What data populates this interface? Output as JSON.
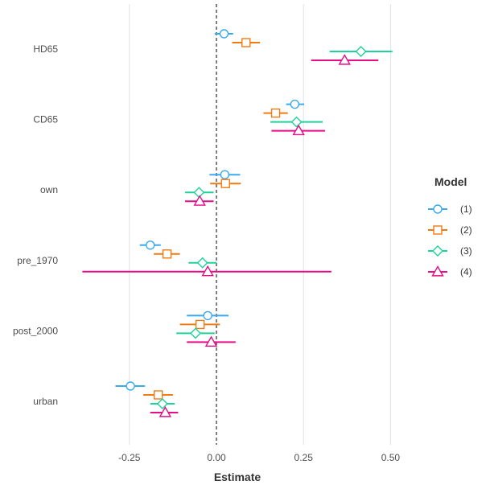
{
  "chart_data": {
    "type": "forest",
    "title": "",
    "xlabel": "Estimate",
    "ylabel": "",
    "xlim": [
      -0.36,
      0.76
    ],
    "xticks": [
      -0.25,
      0.0,
      0.25,
      0.5
    ],
    "xtick_labels": [
      "-0.25",
      "0.00",
      "0.25",
      "0.50"
    ],
    "reference_line": 0,
    "reference_line_style": "dashed",
    "grid": "vertical major",
    "legend_title": "Model",
    "legend_position": "right",
    "terms": [
      "HD65",
      "CD65",
      "own",
      "pre_1970",
      "post_2000",
      "urban"
    ],
    "series": [
      {
        "name": "(1)",
        "color": "#3aaaf0",
        "shape": "circle",
        "estimates": [
          0.022,
          0.225,
          0.024,
          -0.19,
          -0.025,
          -0.247
        ],
        "ci_low": [
          -0.005,
          0.2,
          -0.02,
          -0.22,
          -0.085,
          -0.29
        ],
        "ci_high": [
          0.048,
          0.252,
          0.068,
          -0.16,
          0.035,
          -0.205
        ]
      },
      {
        "name": "(2)",
        "color": "#f07b13",
        "shape": "square",
        "estimates": [
          0.085,
          0.17,
          0.026,
          -0.142,
          -0.047,
          -0.167
        ],
        "ci_low": [
          0.045,
          0.135,
          -0.018,
          -0.18,
          -0.105,
          -0.21
        ],
        "ci_high": [
          0.125,
          0.205,
          0.07,
          -0.105,
          0.01,
          -0.125
        ]
      },
      {
        "name": "(3)",
        "color": "#1ed39a",
        "shape": "diamond",
        "estimates": [
          0.415,
          0.23,
          -0.05,
          -0.04,
          -0.06,
          -0.155
        ],
        "ci_low": [
          0.325,
          0.155,
          -0.09,
          -0.08,
          -0.115,
          -0.19
        ],
        "ci_high": [
          0.505,
          0.305,
          -0.008,
          0.0,
          -0.005,
          -0.12
        ]
      },
      {
        "name": "(4)",
        "color": "#e60d87",
        "shape": "triangle",
        "estimates": [
          0.368,
          0.236,
          -0.048,
          -0.025,
          -0.015,
          -0.147
        ],
        "ci_low": [
          0.272,
          0.158,
          -0.09,
          -0.385,
          -0.085,
          -0.19
        ],
        "ci_high": [
          0.465,
          0.312,
          -0.008,
          0.33,
          0.055,
          -0.11
        ]
      }
    ]
  }
}
